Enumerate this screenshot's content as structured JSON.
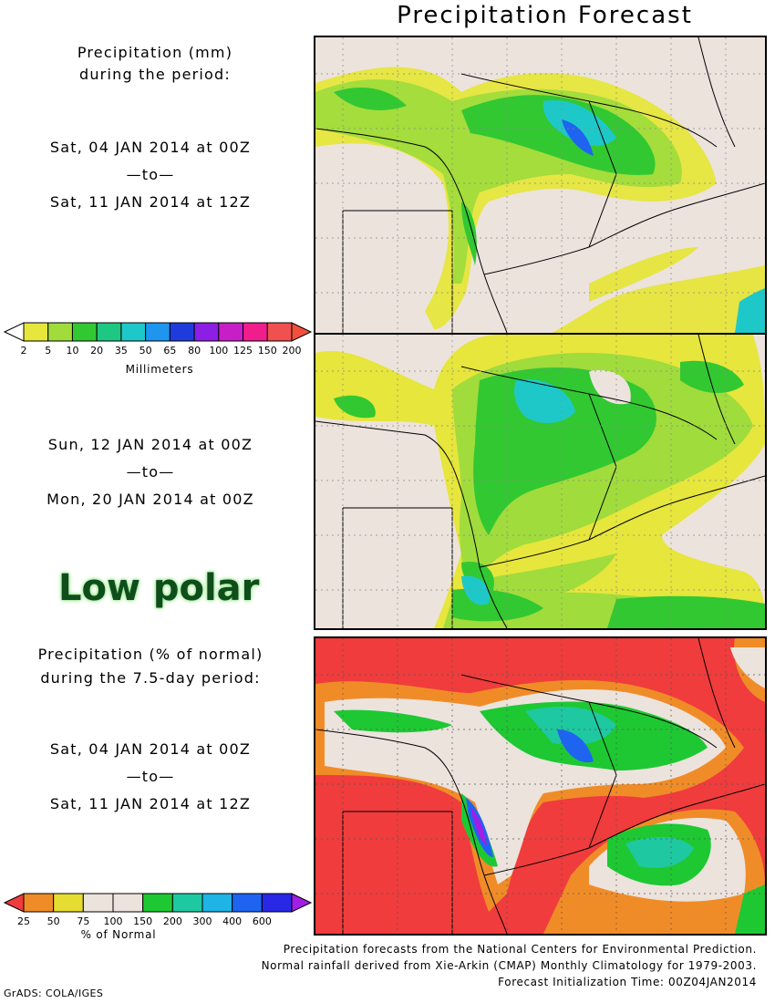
{
  "title": "Precipitation Forecast",
  "panel1": {
    "heading_line1": "Precipitation (mm)",
    "heading_line2": "during the period:",
    "start": "Sat, 04 JAN 2014 at 00Z",
    "to": "—to—",
    "end": "Sat, 11 JAN 2014 at 12Z"
  },
  "panel2": {
    "start": "Sun, 12 JAN 2014 at 00Z",
    "to": "—to—",
    "end": "Mon, 20 JAN 2014 at 00Z"
  },
  "panel3": {
    "heading_line1": "Precipitation (% of normal)",
    "heading_line2": "during the 7.5-day period:",
    "start": "Sat, 04 JAN 2014 at 00Z",
    "to": "—to—",
    "end": "Sat, 11 JAN 2014 at 12Z"
  },
  "overlay_text": "Low polar",
  "legend_mm": {
    "unit": "Millimeters",
    "ticks": [
      "2",
      "5",
      "10",
      "20",
      "35",
      "50",
      "65",
      "80",
      "100",
      "125",
      "150",
      "200"
    ],
    "colors": [
      "#ffffff",
      "#e6e63c",
      "#a0dc3c",
      "#32c832",
      "#1ec882",
      "#1ec8c8",
      "#1e96f0",
      "#1e3cdc",
      "#8c1ee6",
      "#c81ec8",
      "#f01e8c",
      "#f05050",
      "#f0503c"
    ]
  },
  "legend_pct": {
    "unit": "% of Normal",
    "ticks": [
      "25",
      "50",
      "75",
      "100",
      "150",
      "200",
      "300",
      "400",
      "600"
    ],
    "colors": [
      "#f03c3c",
      "#f08c28",
      "#e6dc32",
      "#ece3dd",
      "#ece3dd",
      "#1ec832",
      "#1ec8a0",
      "#1eb4e6",
      "#1e64f0",
      "#2828e6",
      "#a01ee6"
    ]
  },
  "footer": {
    "line1": "Precipitation forecasts from the National Centers for Environmental Prediction.",
    "line2": "Normal rainfall derived from Xie-Arkin (CMAP) Monthly Climatology for 1979-2003.",
    "line3": "Forecast Initialization Time: 00Z04JAN2014",
    "credit": "GrADS: COLA/IGES"
  }
}
